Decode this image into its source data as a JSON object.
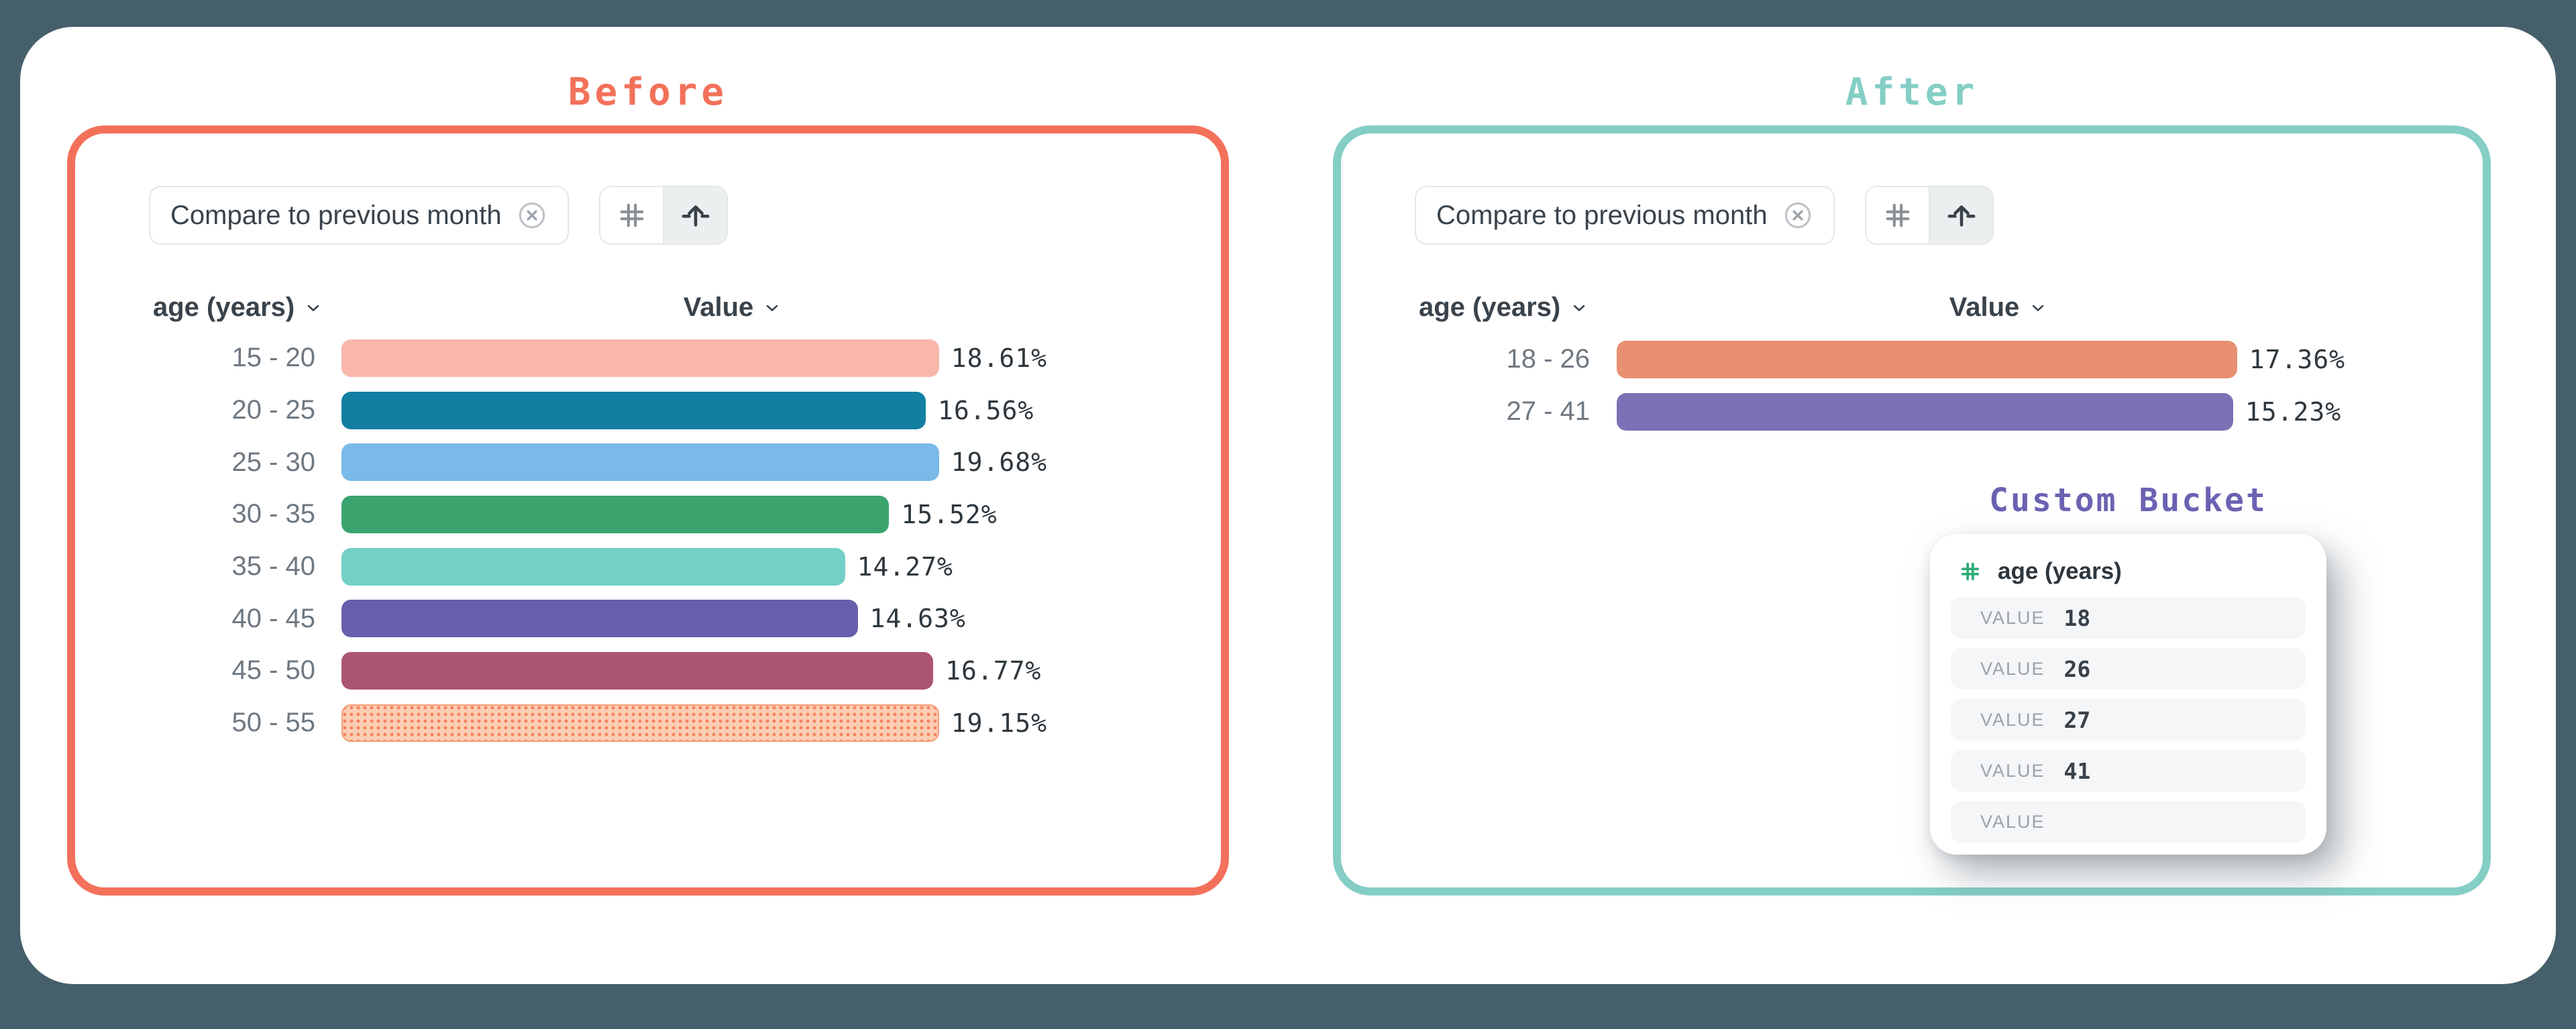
{
  "theme": {
    "background": "#46606B",
    "surface": "#FFFFFF",
    "before_accent": "#F3715A",
    "after_accent": "#84CEC5",
    "custom_bucket_accent": "#6A62B2",
    "hash_green": "#2EAC77",
    "text_dark": "#3A434B",
    "text_gray": "#6F7881"
  },
  "before_panel": {
    "title": "Before",
    "chip": {
      "label": "Compare to previous month",
      "close_icon": "circle-x-icon"
    },
    "toolbar": {
      "grid_button_icon": "hash-icon",
      "bucket_button_icon": "arrow-up-icon",
      "active_button": "bucket"
    },
    "dimension_header": "age (years)",
    "value_header": "Value"
  },
  "after_panel": {
    "title": "After",
    "chip": {
      "label": "Compare to previous month",
      "close_icon": "circle-x-icon"
    },
    "toolbar": {
      "grid_button_icon": "hash-icon",
      "bucket_button_icon": "arrow-up-icon",
      "active_button": "bucket"
    },
    "dimension_header": "age (years)",
    "value_header": "Value"
  },
  "custom_bucket": {
    "title": "Custom Bucket",
    "property_icon": "hash-icon",
    "property_name": "age (years)",
    "rows": [
      {
        "label": "VALUE",
        "value": "18"
      },
      {
        "label": "VALUE",
        "value": "26"
      },
      {
        "label": "VALUE",
        "value": "27"
      },
      {
        "label": "VALUE",
        "value": "41"
      },
      {
        "label": "VALUE",
        "value": ""
      }
    ]
  },
  "chart_data": [
    {
      "type": "bar",
      "orientation": "horizontal",
      "title": "Before",
      "categories": [
        "15 - 20",
        "20 - 25",
        "25 - 30",
        "30 - 35",
        "35 - 40",
        "40 - 45",
        "45 - 50",
        "50 - 55"
      ],
      "values": [
        18.61,
        16.56,
        19.68,
        15.52,
        14.27,
        14.63,
        16.77,
        19.15
      ],
      "value_labels": [
        "18.61%",
        "16.56%",
        "19.68%",
        "15.52%",
        "14.27%",
        "14.63%",
        "16.77%",
        "19.15%"
      ],
      "bar_colors": [
        "#F9B7AC",
        "#127FA2",
        "#7AB9E8",
        "#3BA46E",
        "#74CFC6",
        "#6660AC",
        "#AC5570",
        "#FBCEB4"
      ],
      "dot_pattern_row": 7,
      "dot_pattern": {
        "bg": "#FBCEB4",
        "dot": "#F4835D"
      },
      "xlabel": "Value",
      "ylabel": "age (years)",
      "xlim": [
        0,
        20
      ],
      "grid": false,
      "legend": false
    },
    {
      "type": "bar",
      "orientation": "horizontal",
      "title": "After",
      "categories": [
        "18 - 26",
        "27 - 41"
      ],
      "values": [
        17.36,
        15.23
      ],
      "value_labels": [
        "17.36%",
        "15.23%"
      ],
      "bar_colors": [
        "#E98F72",
        "#7B72B5"
      ],
      "xlabel": "Value",
      "ylabel": "age (years)",
      "xlim": [
        0,
        18
      ],
      "grid": false,
      "legend": false
    }
  ]
}
